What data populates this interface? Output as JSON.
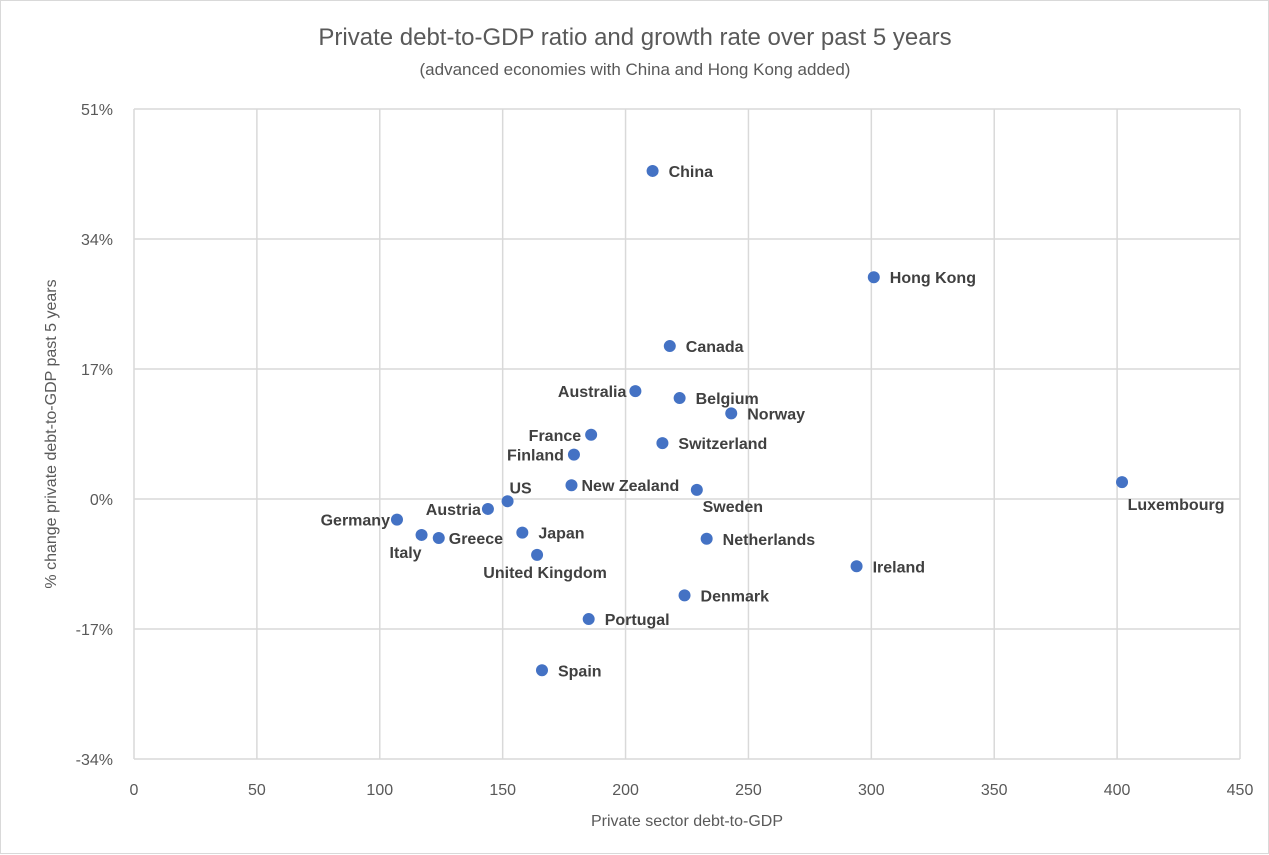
{
  "chart_data": {
    "type": "scatter",
    "title": "Private debt-to-GDP ratio and growth rate over past 5 years",
    "subtitle": "(advanced economies with China and Hong Kong added)",
    "xlabel": "Private sector debt-to-GDP",
    "ylabel": "% change private debt-to-GDP past 5 years",
    "xlim": [
      0,
      450
    ],
    "ylim": [
      -34,
      51
    ],
    "x_ticks": [
      0,
      50,
      100,
      150,
      200,
      250,
      300,
      350,
      400,
      450
    ],
    "x_tick_labels": [
      "0",
      "50",
      "100",
      "150",
      "200",
      "250",
      "300",
      "350",
      "400",
      "450"
    ],
    "y_ticks": [
      51,
      34,
      17,
      0,
      -17,
      -34
    ],
    "y_tick_labels": [
      "51%",
      "34%",
      "17%",
      "0%",
      "-17%",
      "-34%"
    ],
    "grid": true,
    "legend": "none",
    "marker_color": "#4472c4",
    "points": [
      {
        "label": "China",
        "x": 211,
        "y": 42.9,
        "label_pos": "right"
      },
      {
        "label": "Hong Kong",
        "x": 301,
        "y": 29.0,
        "label_pos": "right"
      },
      {
        "label": "Canada",
        "x": 218,
        "y": 20.0,
        "label_pos": "right"
      },
      {
        "label": "Australia",
        "x": 204,
        "y": 14.1,
        "label_pos": "left"
      },
      {
        "label": "Belgium",
        "x": 222,
        "y": 13.2,
        "label_pos": "right"
      },
      {
        "label": "Norway",
        "x": 243,
        "y": 11.2,
        "label_pos": "right"
      },
      {
        "label": "France",
        "x": 186,
        "y": 8.4,
        "label_pos": "left"
      },
      {
        "label": "Switzerland",
        "x": 215,
        "y": 7.3,
        "label_pos": "right"
      },
      {
        "label": "Finland",
        "x": 179,
        "y": 5.8,
        "label_pos": "left"
      },
      {
        "label": "New Zealand",
        "x": 178,
        "y": 1.8,
        "label_pos": "right"
      },
      {
        "label": "Sweden",
        "x": 229,
        "y": 1.2,
        "label_pos": "below"
      },
      {
        "label": "US",
        "x": 152,
        "y": -0.3,
        "label_pos": "above"
      },
      {
        "label": "Austria",
        "x": 144,
        "y": -1.3,
        "label_pos": "left"
      },
      {
        "label": "Germany",
        "x": 107,
        "y": -2.7,
        "label_pos": "left"
      },
      {
        "label": "Italy",
        "x": 117,
        "y": -4.7,
        "label_pos": "below"
      },
      {
        "label": "Greece",
        "x": 124,
        "y": -5.1,
        "label_pos": "right"
      },
      {
        "label": "Japan",
        "x": 158,
        "y": -4.4,
        "label_pos": "right"
      },
      {
        "label": "United Kingdom",
        "x": 164,
        "y": -7.3,
        "label_pos": "below"
      },
      {
        "label": "Netherlands",
        "x": 233,
        "y": -5.2,
        "label_pos": "right"
      },
      {
        "label": "Ireland",
        "x": 294,
        "y": -8.8,
        "label_pos": "right"
      },
      {
        "label": "Denmark",
        "x": 224,
        "y": -12.6,
        "label_pos": "right"
      },
      {
        "label": "Portugal",
        "x": 185,
        "y": -15.7,
        "label_pos": "right"
      },
      {
        "label": "Spain",
        "x": 166,
        "y": -22.4,
        "label_pos": "right"
      },
      {
        "label": "Luxembourg",
        "x": 402,
        "y": 2.2,
        "label_pos": "below"
      }
    ]
  }
}
